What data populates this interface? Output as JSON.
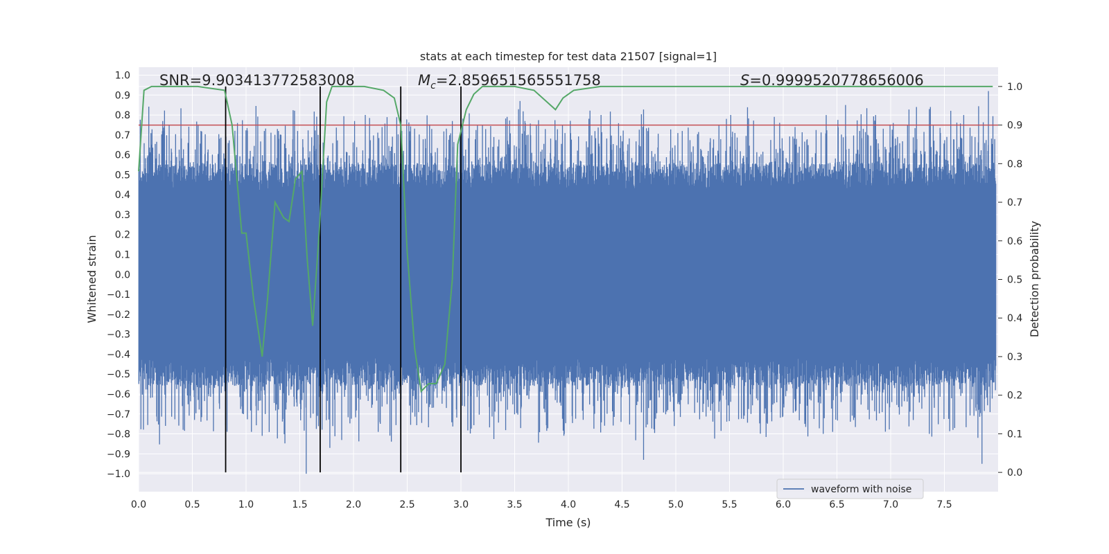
{
  "chart_data": {
    "type": "line",
    "title": "stats at each timestep for test data 21507 [signal=1]",
    "xlabel": "Time (s)",
    "ylabel": "Whitened strain",
    "ylabel_right": "Detection probability",
    "xlim": [
      0.0,
      8.0
    ],
    "ylim": [
      -1.09,
      1.04
    ],
    "ylim_right": [
      -0.05,
      1.05
    ],
    "xticks": [
      "0.0",
      "0.5",
      "1.0",
      "1.5",
      "2.0",
      "2.5",
      "3.0",
      "3.5",
      "4.0",
      "4.5",
      "5.0",
      "5.5",
      "6.0",
      "6.5",
      "7.0",
      "7.5"
    ],
    "yticks": [
      "1.0",
      "0.9",
      "0.8",
      "0.7",
      "0.6",
      "0.5",
      "0.4",
      "0.3",
      "0.2",
      "0.1",
      "0.0",
      "−0.1",
      "−0.2",
      "−0.3",
      "−0.4",
      "−0.5",
      "−0.6",
      "−0.7",
      "−0.8",
      "−0.9",
      "−1.0"
    ],
    "yticks_right": [
      "1.0",
      "0.9",
      "0.8",
      "0.7",
      "0.6",
      "0.5",
      "0.4",
      "0.3",
      "0.2",
      "0.1",
      "0.0"
    ],
    "annotations": {
      "snr": "SNR=9.903413772583008",
      "mc_symbol": "M",
      "mc_sub": "c",
      "mc_value": "=2.859651565551758",
      "s_symbol": "S",
      "s_value": "=0.9999520778656006"
    },
    "legend": {
      "label": "waveform with noise",
      "position": "lower-right"
    },
    "vlines_x": [
      0.81,
      1.69,
      2.44,
      3.0
    ],
    "threshold_right": 0.9,
    "waveform": {
      "name": "waveform with noise",
      "core_amplitude": 0.42,
      "peaks_up": [
        [
          0.24,
          0.72
        ],
        [
          0.46,
          0.66
        ],
        [
          0.58,
          0.72
        ],
        [
          0.92,
          0.76
        ],
        [
          1.17,
          0.72
        ],
        [
          1.48,
          0.72
        ],
        [
          2.01,
          0.77
        ],
        [
          2.45,
          0.72
        ],
        [
          2.92,
          0.77
        ],
        [
          3.55,
          0.87
        ],
        [
          4.7,
          0.78
        ],
        [
          5.06,
          0.72
        ],
        [
          5.55,
          0.71
        ],
        [
          6.11,
          0.74
        ],
        [
          6.4,
          0.8
        ],
        [
          6.58,
          0.85
        ],
        [
          6.86,
          0.8
        ],
        [
          7.36,
          0.83
        ],
        [
          7.68,
          0.8
        ],
        [
          7.91,
          0.92
        ]
      ],
      "peaks_down": [
        [
          0.25,
          -0.76
        ],
        [
          0.52,
          -0.73
        ],
        [
          1.05,
          -0.79
        ],
        [
          1.15,
          -0.81
        ],
        [
          1.56,
          -1.0
        ],
        [
          1.78,
          -0.87
        ],
        [
          2.23,
          -0.79
        ],
        [
          3.17,
          -0.63
        ],
        [
          4.7,
          -0.93
        ],
        [
          5.7,
          -0.7
        ],
        [
          6.2,
          -0.75
        ],
        [
          6.46,
          -0.79
        ],
        [
          7.36,
          -0.8
        ],
        [
          7.58,
          -0.78
        ],
        [
          7.85,
          -0.95
        ]
      ],
      "color": "#4c72b0"
    },
    "probability": {
      "name": "Detection probability",
      "x": [
        0.0,
        0.05,
        0.12,
        0.3,
        0.55,
        0.8,
        0.87,
        0.96,
        1.0,
        1.07,
        1.15,
        1.2,
        1.27,
        1.35,
        1.4,
        1.46,
        1.52,
        1.57,
        1.62,
        1.68,
        1.75,
        1.8,
        1.9,
        2.1,
        2.28,
        2.38,
        2.44,
        2.5,
        2.57,
        2.63,
        2.7,
        2.77,
        2.85,
        2.92,
        2.97,
        3.05,
        3.12,
        3.2,
        3.3,
        3.5,
        3.68,
        3.8,
        3.88,
        3.95,
        4.05,
        4.3,
        5.0,
        6.0,
        7.0,
        7.95
      ],
      "y": [
        0.78,
        0.99,
        1.0,
        1.0,
        1.0,
        0.99,
        0.9,
        0.62,
        0.62,
        0.45,
        0.3,
        0.45,
        0.7,
        0.66,
        0.65,
        0.76,
        0.78,
        0.55,
        0.38,
        0.62,
        0.96,
        1.0,
        1.0,
        1.0,
        0.99,
        0.97,
        0.9,
        0.57,
        0.32,
        0.21,
        0.23,
        0.23,
        0.28,
        0.5,
        0.85,
        0.94,
        0.98,
        1.0,
        1.0,
        1.0,
        0.99,
        0.96,
        0.94,
        0.97,
        0.99,
        1.0,
        1.0,
        1.0,
        1.0,
        1.0
      ],
      "color": "#55a868"
    },
    "colors": {
      "background": "#eaeaf2",
      "grid": "#ffffff",
      "threshold": "#c44e52",
      "vline": "#000000"
    }
  }
}
